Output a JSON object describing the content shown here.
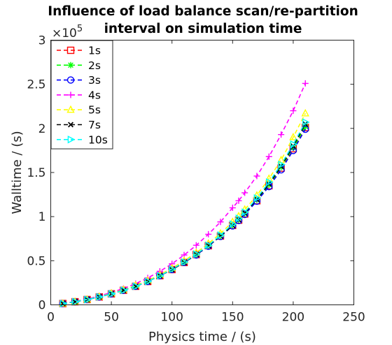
{
  "chart_data": {
    "type": "line",
    "title": [
      "Influence of load balance scan/re-partition",
      "interval on simulation time"
    ],
    "xlabel": "Physics time / (s)",
    "ylabel": "Walltime / (s)",
    "xlim": [
      0,
      250
    ],
    "ylim": [
      0,
      300000
    ],
    "xticks": [
      0,
      50,
      100,
      150,
      200,
      250
    ],
    "xtick_labels": [
      "0",
      "50",
      "100",
      "150",
      "200",
      "250"
    ],
    "yticks": [
      0,
      50000,
      100000,
      150000,
      200000,
      250000,
      300000
    ],
    "ytick_labels": [
      "0",
      "0.5",
      "1",
      "1.5",
      "2",
      "2.5",
      "3"
    ],
    "y_exponent_label": "×10",
    "y_exponent_power": "5",
    "grid": false,
    "legend_position": "top-left",
    "x": [
      10,
      20,
      30,
      40,
      50,
      60,
      70,
      80,
      90,
      100,
      110,
      120,
      130,
      140,
      150,
      155,
      160,
      170,
      180,
      190,
      200,
      210
    ],
    "series": [
      {
        "name": "1s",
        "color": "#ff0000",
        "marker": "square",
        "values": [
          1500,
          3500,
          6000,
          9000,
          12500,
          16500,
          21000,
          26500,
          33000,
          40000,
          48000,
          57000,
          67000,
          78000,
          90000,
          96000,
          103000,
          118000,
          135000,
          155000,
          177000,
          201000
        ]
      },
      {
        "name": "2s",
        "color": "#00ff00",
        "marker": "asterisk",
        "values": [
          1500,
          3500,
          6000,
          9000,
          12500,
          16500,
          21000,
          26500,
          33000,
          40000,
          48000,
          57000,
          67000,
          78000,
          90000,
          96500,
          103500,
          119000,
          136000,
          156000,
          178000,
          202000
        ]
      },
      {
        "name": "3s",
        "color": "#0000ff",
        "marker": "circle",
        "values": [
          1500,
          3500,
          6000,
          9000,
          12500,
          16500,
          21000,
          26500,
          33000,
          40000,
          48000,
          56500,
          66500,
          77500,
          89500,
          95500,
          102500,
          117500,
          134000,
          153000,
          175000,
          199000
        ]
      },
      {
        "name": "4s",
        "color": "#ff00ff",
        "marker": "plus",
        "values": [
          1500,
          3800,
          6500,
          10000,
          14000,
          18500,
          24000,
          30500,
          38000,
          46500,
          56500,
          67500,
          80000,
          94000,
          110000,
          118000,
          127000,
          146000,
          168000,
          193000,
          220000,
          251000
        ]
      },
      {
        "name": "5s",
        "color": "#ffff00",
        "marker": "triangle",
        "values": [
          1500,
          3600,
          6100,
          9200,
          13000,
          17000,
          22000,
          27500,
          34000,
          41500,
          50000,
          59000,
          69500,
          81000,
          94000,
          100500,
          108000,
          124000,
          143000,
          164000,
          190000,
          217000
        ]
      },
      {
        "name": "7s",
        "color": "#000000",
        "marker": "x",
        "values": [
          1500,
          3500,
          6000,
          9000,
          12500,
          16500,
          21000,
          26500,
          33000,
          40000,
          48000,
          57000,
          67000,
          78000,
          90000,
          96500,
          104000,
          119500,
          137000,
          157000,
          180000,
          205000
        ]
      },
      {
        "name": "10s",
        "color": "#00ffff",
        "marker": "triangle-right",
        "values": [
          1500,
          3500,
          6000,
          9000,
          12500,
          16500,
          21000,
          26500,
          33000,
          40500,
          48500,
          57500,
          67500,
          79000,
          91500,
          98000,
          105000,
          121000,
          139000,
          159000,
          182000,
          207000
        ]
      }
    ]
  }
}
